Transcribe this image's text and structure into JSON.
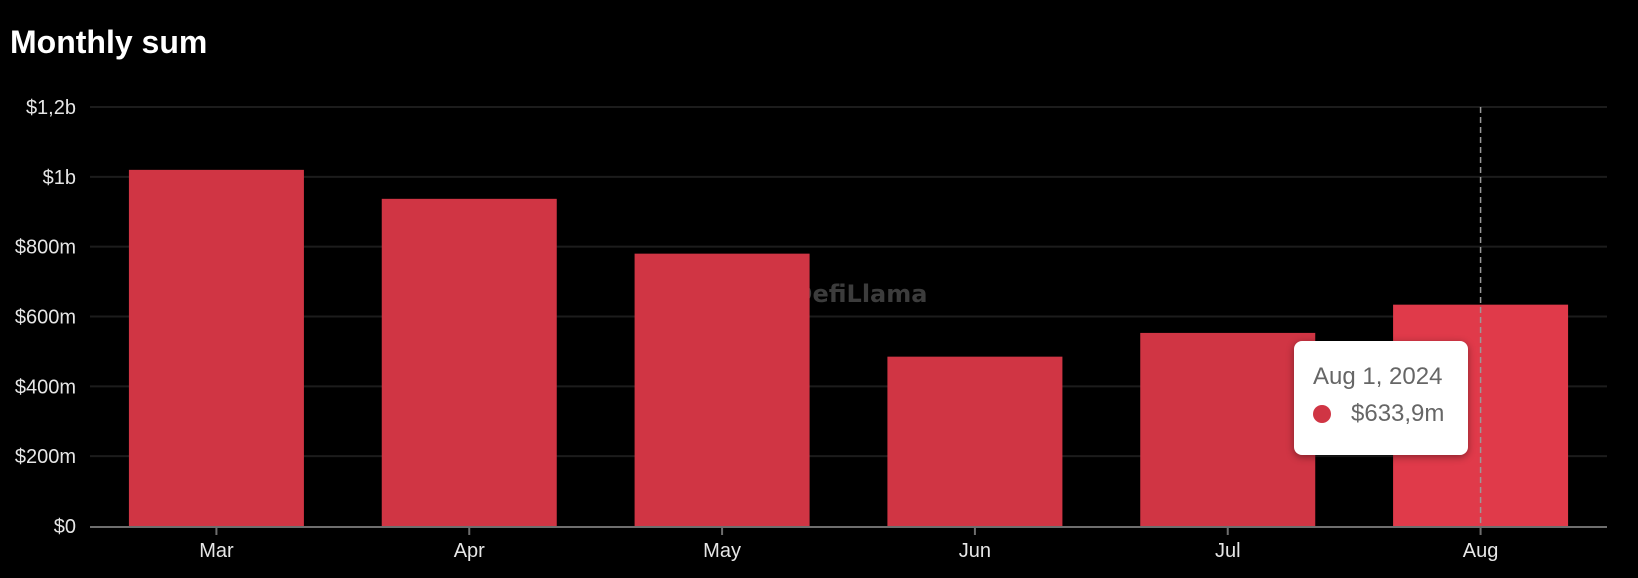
{
  "chart_data": {
    "type": "bar",
    "title": "Monthly sum",
    "categories": [
      "Mar",
      "Apr",
      "May",
      "Jun",
      "Jul",
      "Aug"
    ],
    "values": [
      1020000000,
      937000000,
      780000000,
      485000000,
      553000000,
      633900000
    ],
    "y_tick_labels": [
      "$0",
      "$200m",
      "$400m",
      "$600m",
      "$800m",
      "$1b",
      "$1,2b"
    ],
    "ylim": [
      0,
      1200000000
    ],
    "ytick_step": 200000000,
    "xlabel": "",
    "ylabel": "",
    "grid": true,
    "bar_color": "#d03544",
    "highlight_color": "#e03a4a",
    "highlighted_category": "Aug",
    "watermark": "DefiLlama"
  },
  "tooltip": {
    "date": "Aug 1, 2024",
    "value": "$633,9m",
    "marker_color": "#d03544"
  },
  "colors": {
    "background": "#000000",
    "grid": "#1c1c1c",
    "axis": "#6e6e6e",
    "crosshair": "#9a9a9a"
  }
}
